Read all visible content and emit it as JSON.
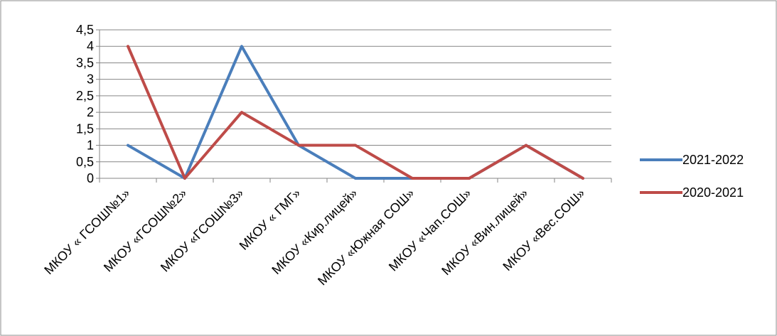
{
  "chart_data": {
    "type": "line",
    "categories": [
      "МКОУ « ГСОШ№1»",
      "МКОУ «ГСОШ№2»",
      "МКОУ «ГСОШ№3»",
      "МКОУ « ГМГ»",
      "МКОУ «Кир.лицей»",
      "МКОУ «Южная СОШ»",
      "МКОУ «Чап.СОШ»",
      "МКОУ «Вин.лицей»",
      "МКОУ «Вес.СОШ»"
    ],
    "series": [
      {
        "name": "2021-2022",
        "color": "#4a7ebb",
        "values": [
          1,
          0,
          4,
          1,
          0,
          0,
          0,
          1,
          0
        ]
      },
      {
        "name": "2020-2021",
        "color": "#be4b48",
        "values": [
          4,
          0,
          2,
          1,
          1,
          0,
          0,
          1,
          0
        ]
      }
    ],
    "y_ticks": [
      "0",
      "0,5",
      "1",
      "1,5",
      "2",
      "2,5",
      "3",
      "3,5",
      "4",
      "4,5"
    ],
    "ylim": [
      0,
      4.5
    ],
    "grid": true,
    "legend_position": "right"
  }
}
